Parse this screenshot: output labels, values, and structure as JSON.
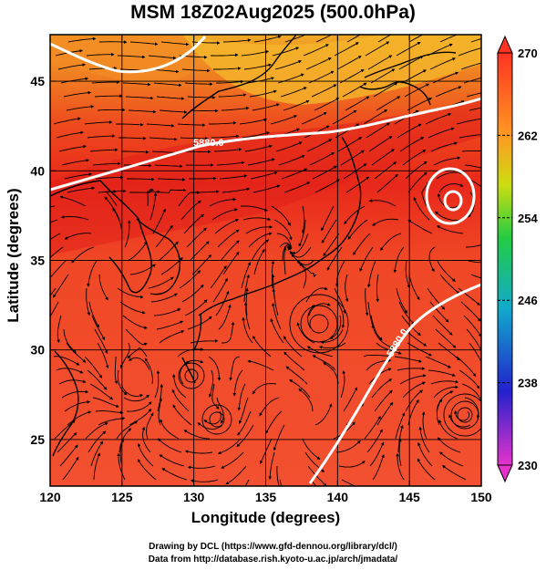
{
  "title": "MSM 18Z02Aug2025 (500.0hPa)",
  "xlabel": "Longitude (degrees)",
  "ylabel": "Latitude  (degrees)",
  "x_ticks": [
    "120",
    "125",
    "130",
    "135",
    "140",
    "145",
    "150"
  ],
  "y_ticks": [
    "25",
    "30",
    "35",
    "40",
    "45"
  ],
  "colorbar_ticks": [
    "270",
    "262",
    "254",
    "246",
    "238",
    "230"
  ],
  "contour_labels": [
    "5880.0",
    "5880.0"
  ],
  "credits": [
    "Drawing by DCL (https://www.gfd-dennou.org/library/dcl/)",
    "Data from http://database.rish.kyoto-u.ac.jp/arch/jmadata/"
  ],
  "chart_data": {
    "type": "heatmap",
    "title": "MSM 18Z02Aug2025 (500.0hPa)",
    "xlabel": "Longitude (degrees)",
    "ylabel": "Latitude  (degrees)",
    "xlim": [
      120,
      150
    ],
    "ylim": [
      22.4,
      47.6
    ],
    "colorbar_range": [
      230,
      270
    ],
    "colorbar_colors": [
      "#e633cc",
      "#2222cc",
      "#11aacc",
      "#22cc44",
      "#ccdd11",
      "#ff9922",
      "#ff3322"
    ],
    "field_colors": {
      "north": "#f2a024",
      "mid": "#f24a22",
      "band": "#e8281a",
      "south": "#f24e2c"
    },
    "contour_level": 5880.0,
    "overlays": [
      "streamlines",
      "coastlines",
      "grid"
    ]
  }
}
